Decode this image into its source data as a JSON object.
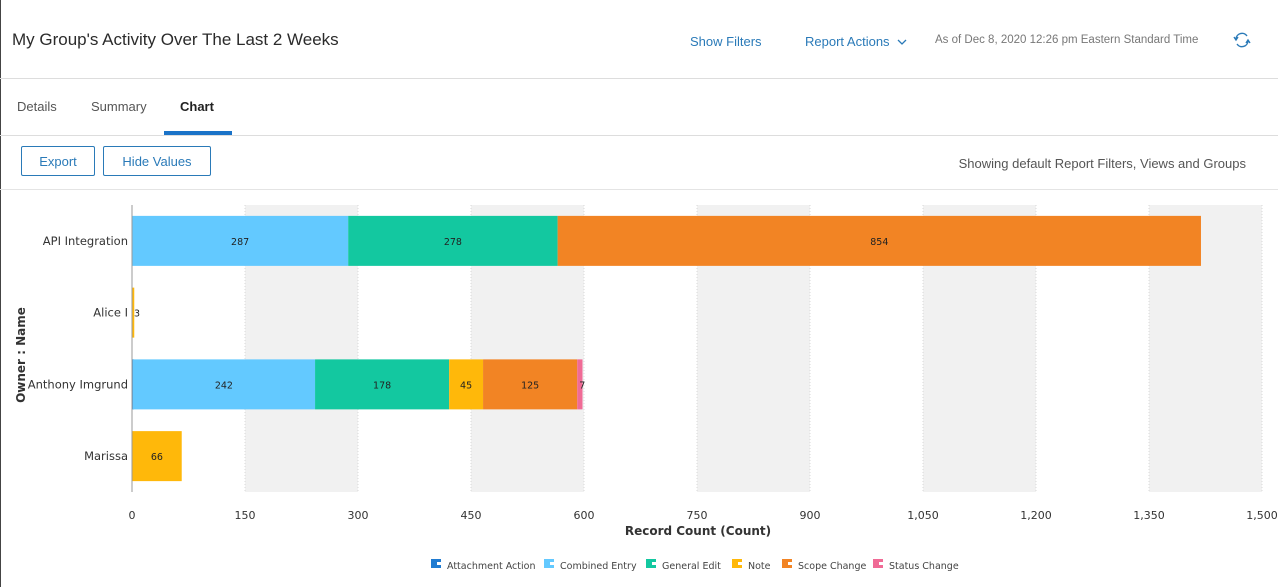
{
  "header": {
    "title": "My Group's Activity Over The Last 2 Weeks",
    "show_filters": "Show Filters",
    "report_actions": "Report Actions",
    "as_of": "As of Dec 8, 2020 12:26 pm Eastern Standard Time",
    "refresh_icon": "refresh-icon",
    "link_color": "#2a7ab8"
  },
  "tabs": [
    {
      "label": "Details",
      "active": false
    },
    {
      "label": "Summary",
      "active": false
    },
    {
      "label": "Chart",
      "active": true
    }
  ],
  "toolbar": {
    "export_label": "Export",
    "hide_values_label": "Hide Values",
    "status_text": "Showing default Report Filters, Views and Groups"
  },
  "chart_data": {
    "type": "bar",
    "orientation": "horizontal",
    "stacked": true,
    "categories": [
      "API Integration",
      "Alice",
      "Anthony Imgrund",
      "Marissa"
    ],
    "category_labels_display": [
      "API Integration",
      "Alice I",
      "Anthony Imgrund",
      "Marissa"
    ],
    "series": [
      {
        "name": "Attachment Action",
        "color": "#1f7bd1",
        "values": [
          0,
          0,
          1,
          0
        ]
      },
      {
        "name": "Combined Entry",
        "color": "#63c9ff",
        "values": [
          287,
          0,
          242,
          0
        ]
      },
      {
        "name": "General Edit",
        "color": "#13c8a0",
        "values": [
          278,
          0,
          178,
          0
        ]
      },
      {
        "name": "Note",
        "color": "#ffb80a",
        "values": [
          0,
          3,
          45,
          66
        ]
      },
      {
        "name": "Scope Change",
        "color": "#f28424",
        "values": [
          854,
          0,
          125,
          0
        ]
      },
      {
        "name": "Status Change",
        "color": "#f06b96",
        "values": [
          0,
          0,
          7,
          0
        ]
      }
    ],
    "xlabel": "Record Count (Count)",
    "ylabel": "Owner : Name",
    "xlim": [
      0,
      1500
    ],
    "xticks": [
      0,
      150,
      300,
      450,
      600,
      750,
      900,
      1050,
      1200,
      1350,
      1500
    ],
    "xtick_labels": [
      "0",
      "150",
      "300",
      "450",
      "600",
      "750",
      "900",
      "1,050",
      "1,200",
      "1,350",
      "1,500"
    ],
    "data_labels_shown": true,
    "legend_position": "bottom"
  }
}
